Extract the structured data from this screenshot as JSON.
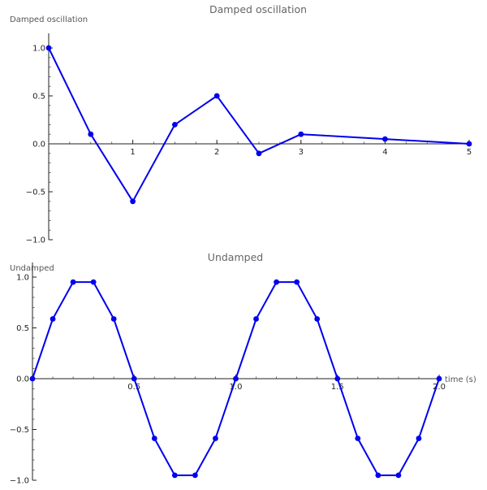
{
  "chart_data": [
    {
      "type": "line",
      "title": "Damped oscillation",
      "ylabel": "Damped oscillation",
      "xlabel": "",
      "xlim": [
        0,
        5
      ],
      "ylim": [
        -1,
        1
      ],
      "xticks": [
        1,
        2,
        3,
        4,
        5
      ],
      "xtick_labels": [
        "1",
        "2",
        "3",
        "4",
        "5"
      ],
      "yticks": [
        -1,
        -0.5,
        0,
        0.5,
        1
      ],
      "ytick_labels": [
        "−1.0",
        "−0.5",
        "0.0",
        "0.5",
        "1.0"
      ],
      "series": [
        {
          "color": "#0000ee",
          "marker": "circle",
          "x": [
            0,
            0.5,
            1,
            1.5,
            2,
            2.5,
            3,
            4,
            5
          ],
          "y": [
            1.0,
            0.1,
            -0.6,
            0.2,
            0.5,
            -0.1,
            0.1,
            0.05,
            0.0
          ]
        }
      ],
      "grid": false
    },
    {
      "type": "line",
      "title": "Undamped",
      "ylabel": "Undamped",
      "xlabel": "time (s)",
      "xlim": [
        0,
        2
      ],
      "ylim": [
        -1,
        1
      ],
      "xticks": [
        0.5,
        1,
        1.5,
        2
      ],
      "xtick_labels": [
        "0.5",
        "1.0",
        "1.5",
        "2.0"
      ],
      "yticks": [
        -1,
        -0.5,
        0,
        0.5,
        1
      ],
      "ytick_labels": [
        "−1.0",
        "−0.5",
        "0.0",
        "0.5",
        "1.0"
      ],
      "series": [
        {
          "color": "#0000ee",
          "marker": "circle",
          "x": [
            0,
            0.1,
            0.2,
            0.3,
            0.4,
            0.5,
            0.6,
            0.7,
            0.8,
            0.9,
            1.0,
            1.1,
            1.2,
            1.3,
            1.4,
            1.5,
            1.6,
            1.7,
            1.8,
            1.9,
            2.0
          ],
          "y": [
            0,
            0.588,
            0.951,
            0.951,
            0.588,
            0,
            -0.588,
            -0.951,
            -0.951,
            -0.588,
            0,
            0.588,
            0.951,
            0.951,
            0.588,
            0,
            -0.588,
            -0.951,
            -0.951,
            -0.588,
            0
          ]
        }
      ],
      "grid": false
    }
  ]
}
